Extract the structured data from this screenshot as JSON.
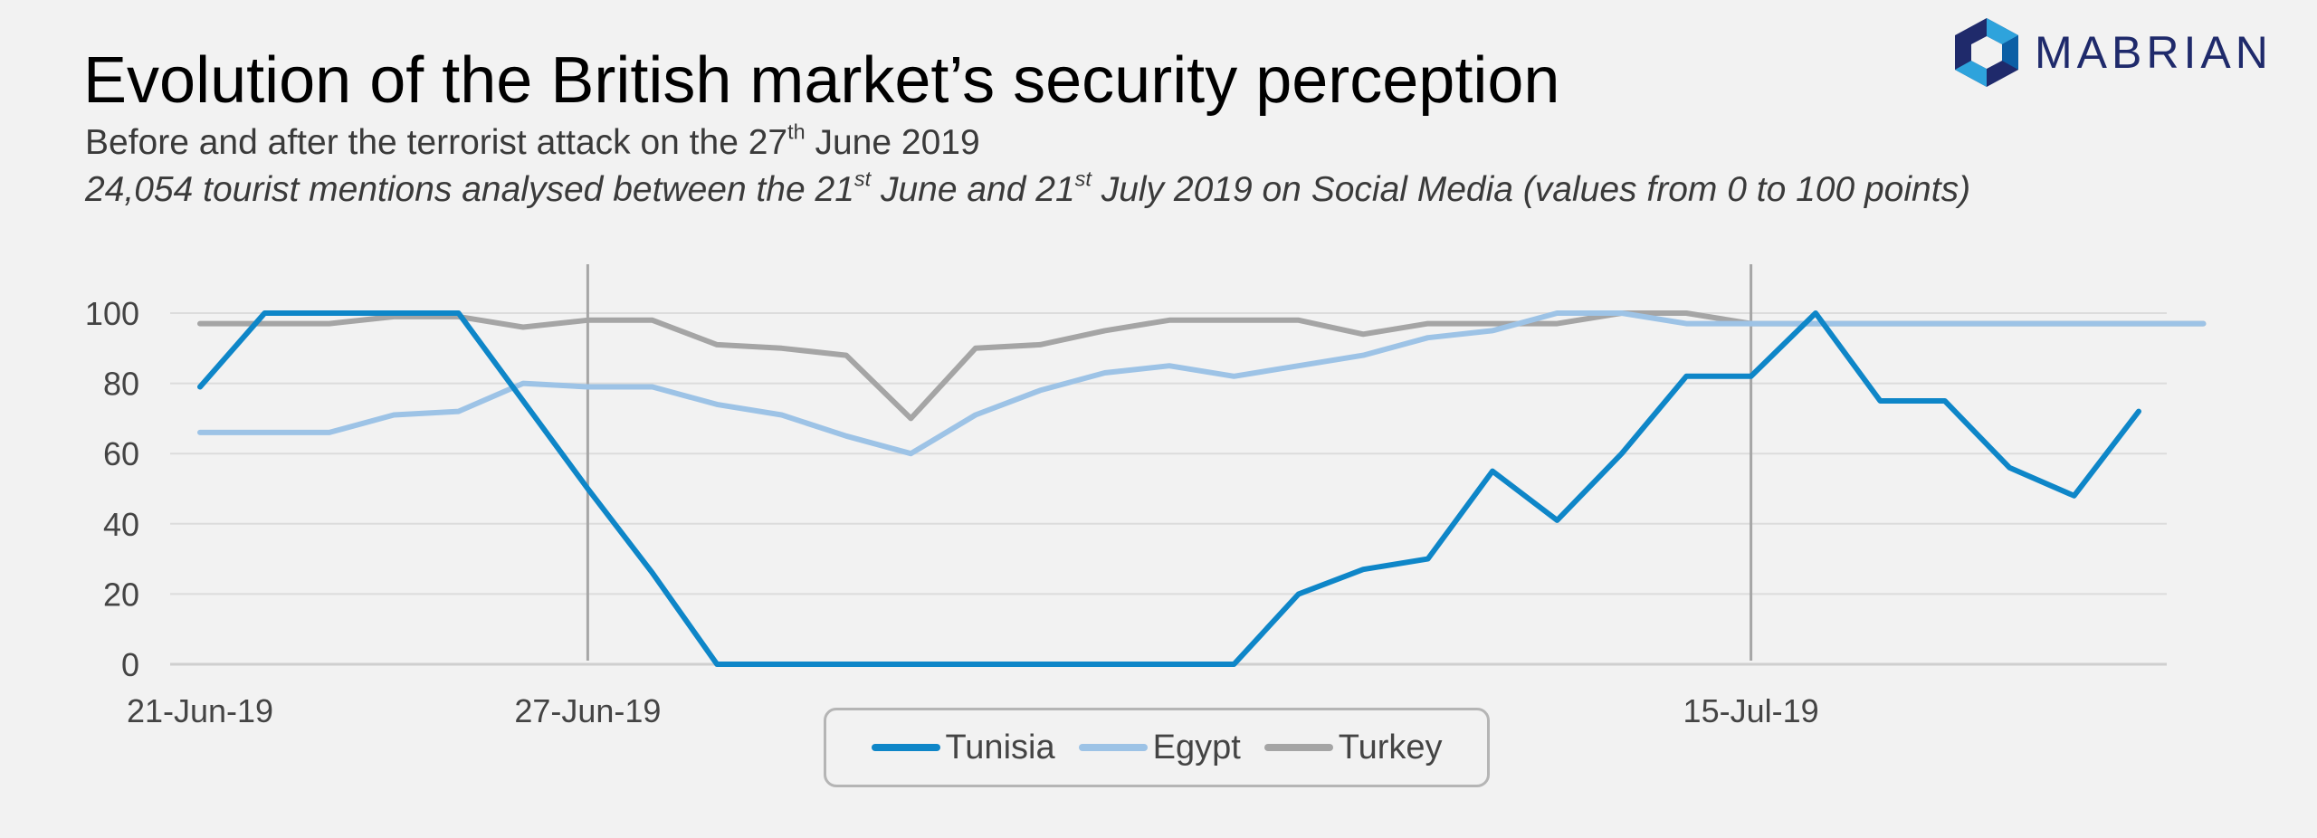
{
  "header": {
    "title": "Evolution of the British market’s security perception",
    "subtitle_pre": "Before and after the terrorist attack on the 27",
    "subtitle_sup": "th",
    "subtitle_post": " June 2019",
    "note_a": "24,054 tourist mentions analysed between the 21",
    "note_sup1": "st",
    "note_b": " June and 21",
    "note_sup2": "st",
    "note_c": " July 2019 on Social Media (values from 0 to 100 points)"
  },
  "logo": {
    "text": "MABRIAN",
    "icon": "hexagon-logo-icon",
    "colors": [
      "#1f2a6b",
      "#2ea3dc",
      "#0b5fa5"
    ]
  },
  "chart_data": {
    "type": "line",
    "x": [
      "21-Jun-19",
      "22-Jun-19",
      "23-Jun-19",
      "24-Jun-19",
      "25-Jun-19",
      "26-Jun-19",
      "27-Jun-19",
      "28-Jun-19",
      "29-Jun-19",
      "30-Jun-19",
      "01-Jul-19",
      "02-Jul-19",
      "03-Jul-19",
      "04-Jul-19",
      "05-Jul-19",
      "06-Jul-19",
      "07-Jul-19",
      "08-Jul-19",
      "09-Jul-19",
      "10-Jul-19",
      "11-Jul-19",
      "12-Jul-19",
      "13-Jul-19",
      "14-Jul-19",
      "15-Jul-19",
      "16-Jul-19",
      "17-Jul-19",
      "18-Jul-19",
      "19-Jul-19",
      "20-Jul-19",
      "21-Jul-19",
      "22-Jul-19"
    ],
    "x_tick_labels": [
      {
        "index": 0,
        "label": "21-Jun-19"
      },
      {
        "index": 6,
        "label": "27-Jun-19"
      },
      {
        "index": 24,
        "label": "15-Jul-19"
      }
    ],
    "reference_lines_at": [
      "27-Jun-19",
      "15-Jul-19"
    ],
    "ylim": [
      0,
      100
    ],
    "yticks": [
      0,
      20,
      40,
      60,
      80,
      100
    ],
    "grid": true,
    "legend_position": "bottom",
    "series": [
      {
        "name": "Tunisia",
        "color": "#0e86c8",
        "values": [
          79,
          100,
          100,
          100,
          100,
          75,
          50,
          26,
          0,
          0,
          0,
          0,
          0,
          0,
          0,
          0,
          0,
          20,
          27,
          30,
          55,
          41,
          60,
          82,
          82,
          100,
          75,
          75,
          56,
          48,
          72,
          null
        ]
      },
      {
        "name": "Egypt",
        "color": "#9dc3e6",
        "values": [
          66,
          66,
          66,
          71,
          72,
          80,
          79,
          79,
          74,
          71,
          65,
          60,
          71,
          78,
          83,
          85,
          82,
          85,
          88,
          93,
          95,
          100,
          100,
          97,
          97,
          97,
          97,
          97,
          97,
          97,
          97,
          97
        ]
      },
      {
        "name": "Turkey",
        "color": "#a5a5a5",
        "values": [
          97,
          97,
          97,
          99,
          99,
          96,
          98,
          98,
          91,
          90,
          88,
          70,
          90,
          91,
          95,
          98,
          98,
          98,
          94,
          97,
          97,
          97,
          100,
          100,
          97,
          97,
          97,
          97,
          97,
          97,
          97,
          97
        ]
      }
    ]
  }
}
